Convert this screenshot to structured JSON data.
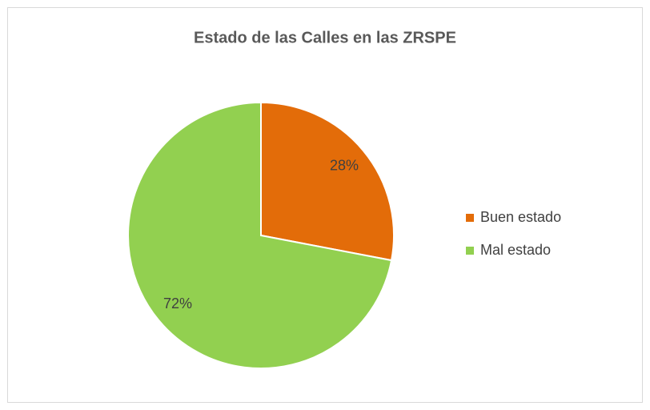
{
  "chart_data": {
    "type": "pie",
    "title": "Estado de las Calles en las ZRSPE",
    "categories": [
      "Buen estado",
      "Mal estado"
    ],
    "values": [
      28,
      72
    ],
    "value_labels": [
      "28%",
      "72%"
    ],
    "colors": [
      "#e36c09",
      "#92d050"
    ],
    "legend": "right"
  }
}
